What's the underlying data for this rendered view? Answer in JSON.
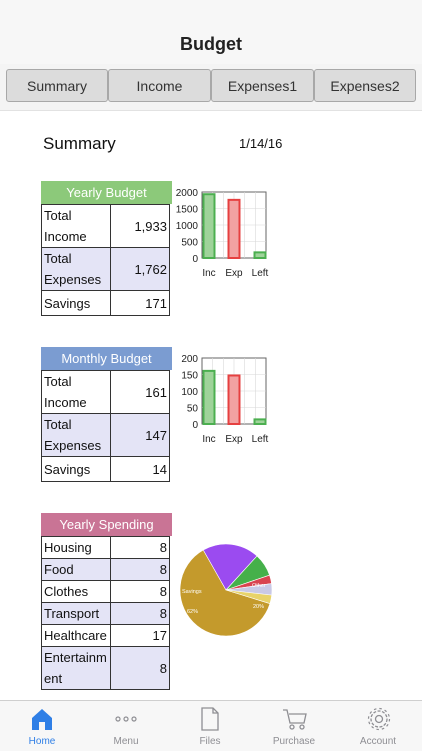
{
  "nav": {
    "title": "Budget"
  },
  "tabs": [
    {
      "label": "Summary"
    },
    {
      "label": "Income"
    },
    {
      "label": "Expenses1"
    },
    {
      "label": "Expenses2"
    }
  ],
  "summary": {
    "heading": "Summary",
    "date": "1/14/16"
  },
  "yearly_budget": {
    "header": "Yearly Budget",
    "rows": [
      {
        "label": "Total Income",
        "value": "1,933"
      },
      {
        "label": "Total Expenses",
        "value": "1,762"
      },
      {
        "label": "Savings",
        "value": "171"
      }
    ]
  },
  "monthly_budget": {
    "header": "Monthly Budget",
    "rows": [
      {
        "label": "Total Income",
        "value": "161"
      },
      {
        "label": "Total Expenses",
        "value": "147"
      },
      {
        "label": "Savings",
        "value": "14"
      }
    ]
  },
  "yearly_spending": {
    "header": "Yearly Spending",
    "rows": [
      {
        "label": "Housing",
        "value": "8"
      },
      {
        "label": "Food",
        "value": "8"
      },
      {
        "label": "Clothes",
        "value": "8"
      },
      {
        "label": "Transport",
        "value": "8"
      },
      {
        "label": "Healthcare",
        "value": "17"
      },
      {
        "label": "Entertainment",
        "value": "8"
      }
    ]
  },
  "colors": {
    "yearly_header": "#8cc97a",
    "monthly_header": "#7b9cd1",
    "spending_header": "#c97495",
    "income_bar": "#4caf50",
    "expense_bar": "#e64040",
    "active_tab": "#2f7fe6"
  },
  "chart_data": [
    {
      "type": "bar",
      "categories": [
        "Inc",
        "Exp",
        "Left"
      ],
      "values": [
        1933,
        1762,
        171
      ],
      "ylim": [
        0,
        2000
      ],
      "yticks": [
        "2000",
        "1500",
        "1000",
        "500",
        "0"
      ],
      "grid": true
    },
    {
      "type": "bar",
      "categories": [
        "Inc",
        "Exp",
        "Left"
      ],
      "values": [
        161,
        147,
        14
      ],
      "ylim": [
        0,
        200
      ],
      "yticks": [
        "200",
        "150",
        "100",
        "50",
        "0"
      ],
      "grid": true
    },
    {
      "type": "pie",
      "slice_labels": [
        "Savings",
        "Other",
        "20%",
        "62%"
      ],
      "slices": [
        {
          "name": "Savings",
          "value": 62,
          "color": "#c49a2c"
        },
        {
          "name": "Purple",
          "value": 20,
          "color": "#9b4bf0"
        },
        {
          "name": "Green",
          "value": 8,
          "color": "#45b04a"
        },
        {
          "name": "Red",
          "value": 3,
          "color": "#d9434f"
        },
        {
          "name": "Light",
          "value": 4,
          "color": "#c9c9e6"
        },
        {
          "name": "Yellow",
          "value": 3,
          "color": "#e8d36a"
        }
      ]
    }
  ],
  "tabbar": [
    {
      "label": "Home",
      "icon": "home-icon"
    },
    {
      "label": "Menu",
      "icon": "menu-icon"
    },
    {
      "label": "Files",
      "icon": "files-icon"
    },
    {
      "label": "Purchase",
      "icon": "cart-icon"
    },
    {
      "label": "Account",
      "icon": "gear-icon"
    }
  ]
}
